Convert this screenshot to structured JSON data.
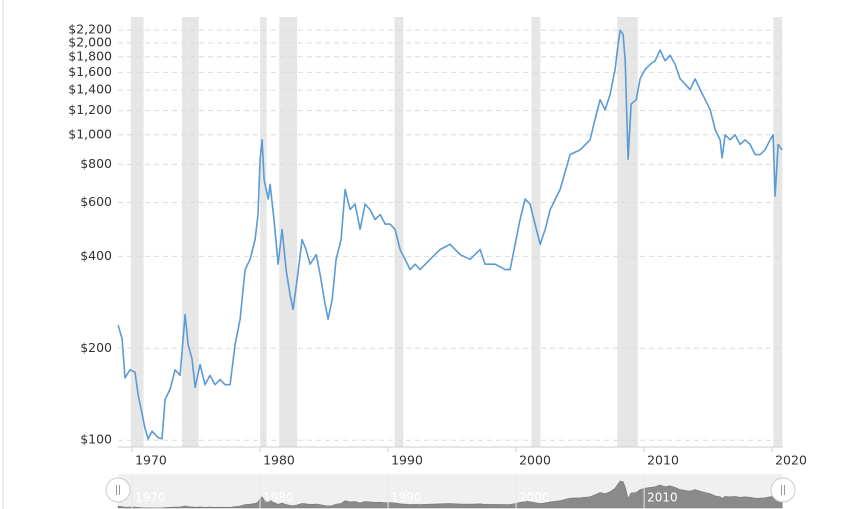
{
  "chart_data": {
    "type": "line",
    "color": "#5b9bd5",
    "log_scale": true,
    "grid": true,
    "recession_color": "#e6e6e6",
    "recessions": [
      [
        1969.9,
        1970.9
      ],
      [
        1973.9,
        1975.2
      ],
      [
        1980.0,
        1980.5
      ],
      [
        1981.5,
        1982.9
      ],
      [
        1990.5,
        1991.2
      ],
      [
        2001.2,
        2001.9
      ],
      [
        2007.9,
        2009.5
      ],
      [
        2020.1,
        2020.8
      ]
    ],
    "xlim": [
      1968.9,
      2020.85
    ],
    "xticks": [
      1970,
      1980,
      1990,
      2000,
      2010,
      2020
    ],
    "ylim": [
      95,
      2430
    ],
    "yticks": [
      {
        "value": 100,
        "label": "$100"
      },
      {
        "value": 200,
        "label": "$200"
      },
      {
        "value": 400,
        "label": "$400"
      },
      {
        "value": 600,
        "label": "$600"
      },
      {
        "value": 800,
        "label": "$800"
      },
      {
        "value": 1000,
        "label": "$1,000"
      },
      {
        "value": 1200,
        "label": "$1,200"
      },
      {
        "value": 1400,
        "label": "$1,400"
      },
      {
        "value": 1600,
        "label": "$1,600"
      },
      {
        "value": 1800,
        "label": "$1,800"
      },
      {
        "value": 2000,
        "label": "$2,000"
      },
      {
        "value": 2200,
        "label": "$2,200"
      }
    ],
    "x": [
      1968.91,
      1969.22,
      1969.45,
      1969.84,
      1970.23,
      1970.47,
      1970.78,
      1971.02,
      1971.25,
      1971.56,
      1972.03,
      1972.34,
      1972.58,
      1972.97,
      1973.36,
      1973.75,
      1974.14,
      1974.38,
      1974.69,
      1974.92,
      1975.31,
      1975.7,
      1976.09,
      1976.48,
      1976.88,
      1977.27,
      1977.66,
      1978.05,
      1978.44,
      1978.83,
      1979.22,
      1979.61,
      1979.84,
      1980.0,
      1980.16,
      1980.31,
      1980.63,
      1980.78,
      1981.09,
      1981.41,
      1981.72,
      1982.03,
      1982.34,
      1982.58,
      1982.89,
      1983.28,
      1983.59,
      1983.91,
      1984.38,
      1984.69,
      1985.08,
      1985.31,
      1985.63,
      1985.94,
      1986.33,
      1986.64,
      1987.03,
      1987.42,
      1987.81,
      1988.2,
      1988.59,
      1988.98,
      1989.38,
      1989.77,
      1990.16,
      1990.55,
      1990.94,
      1991.33,
      1991.72,
      1992.11,
      1992.5,
      1993.28,
      1994.06,
      1994.84,
      1995.63,
      1996.41,
      1997.19,
      1997.58,
      1998.36,
      1999.14,
      1999.53,
      1999.92,
      2000.31,
      2000.7,
      2001.09,
      2001.48,
      2001.88,
      2002.27,
      2002.66,
      2003.44,
      2004.22,
      2005.0,
      2005.78,
      2006.17,
      2006.56,
      2006.95,
      2007.34,
      2007.73,
      2007.97,
      2008.13,
      2008.36,
      2008.52,
      2008.75,
      2008.98,
      2009.38,
      2009.69,
      2010.08,
      2010.47,
      2010.86,
      2011.25,
      2011.64,
      2012.03,
      2012.42,
      2012.81,
      2013.2,
      2013.59,
      2013.98,
      2014.38,
      2014.77,
      2015.16,
      2015.55,
      2015.94,
      2016.09,
      2016.33,
      2016.72,
      2017.11,
      2017.5,
      2017.89,
      2018.28,
      2018.67,
      2019.06,
      2019.45,
      2019.84,
      2020.08,
      2020.23,
      2020.47,
      2020.78
    ],
    "values": [
      238,
      215,
      160,
      170,
      167,
      141,
      122,
      109,
      101,
      107,
      102,
      101,
      136,
      147,
      170,
      163,
      258,
      206,
      184,
      149,
      177,
      152,
      163,
      152,
      158,
      152,
      152,
      206,
      249,
      362,
      391,
      454,
      548,
      832,
      963,
      714,
      616,
      688,
      528,
      377,
      490,
      362,
      300,
      268,
      336,
      454,
      421,
      377,
      405,
      349,
      279,
      249,
      289,
      391,
      454,
      662,
      569,
      593,
      490,
      593,
      569,
      528,
      548,
      510,
      510,
      490,
      421,
      391,
      362,
      377,
      362,
      391,
      421,
      438,
      405,
      391,
      421,
      377,
      377,
      362,
      362,
      438,
      528,
      616,
      593,
      510,
      438,
      490,
      569,
      662,
      861,
      892,
      963,
      1125,
      1303,
      1207,
      1356,
      1637,
      1981,
      2200,
      2133,
      1746,
      832,
      1260,
      1303,
      1525,
      1637,
      1700,
      1746,
      1895,
      1746,
      1820,
      1700,
      1525,
      1465,
      1406,
      1525,
      1406,
      1303,
      1207,
      1040,
      963,
      840,
      1000,
      963,
      1000,
      930,
      963,
      930,
      861,
      861,
      892,
      963,
      1000,
      630,
      930,
      892
    ]
  }
}
